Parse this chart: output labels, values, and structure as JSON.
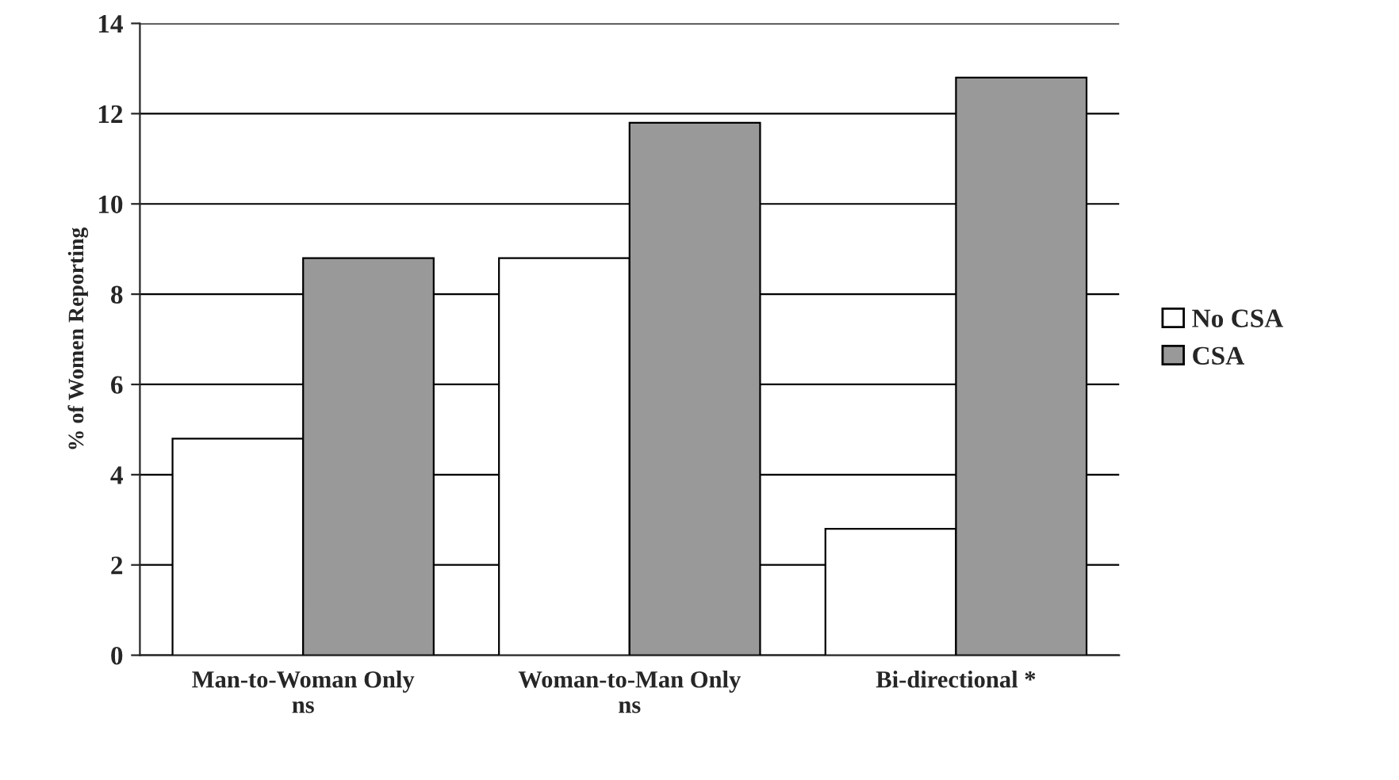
{
  "chart_data": {
    "type": "bar",
    "ylabel": "% of Women Reporting",
    "categories": [
      "Man-to-Woman Only\nns",
      "Woman-to-Man Only\nns",
      "Bi-directional *"
    ],
    "series": [
      {
        "name": "No CSA",
        "color": "#ffffff",
        "values": [
          4.8,
          8.8,
          2.8
        ]
      },
      {
        "name": "CSA",
        "color": "#999999",
        "values": [
          8.8,
          11.8,
          12.8
        ]
      }
    ],
    "ylim": [
      0,
      14
    ],
    "yticks": [
      0,
      2,
      4,
      6,
      8,
      10,
      12,
      14
    ],
    "grid": "y",
    "legend": "right"
  }
}
